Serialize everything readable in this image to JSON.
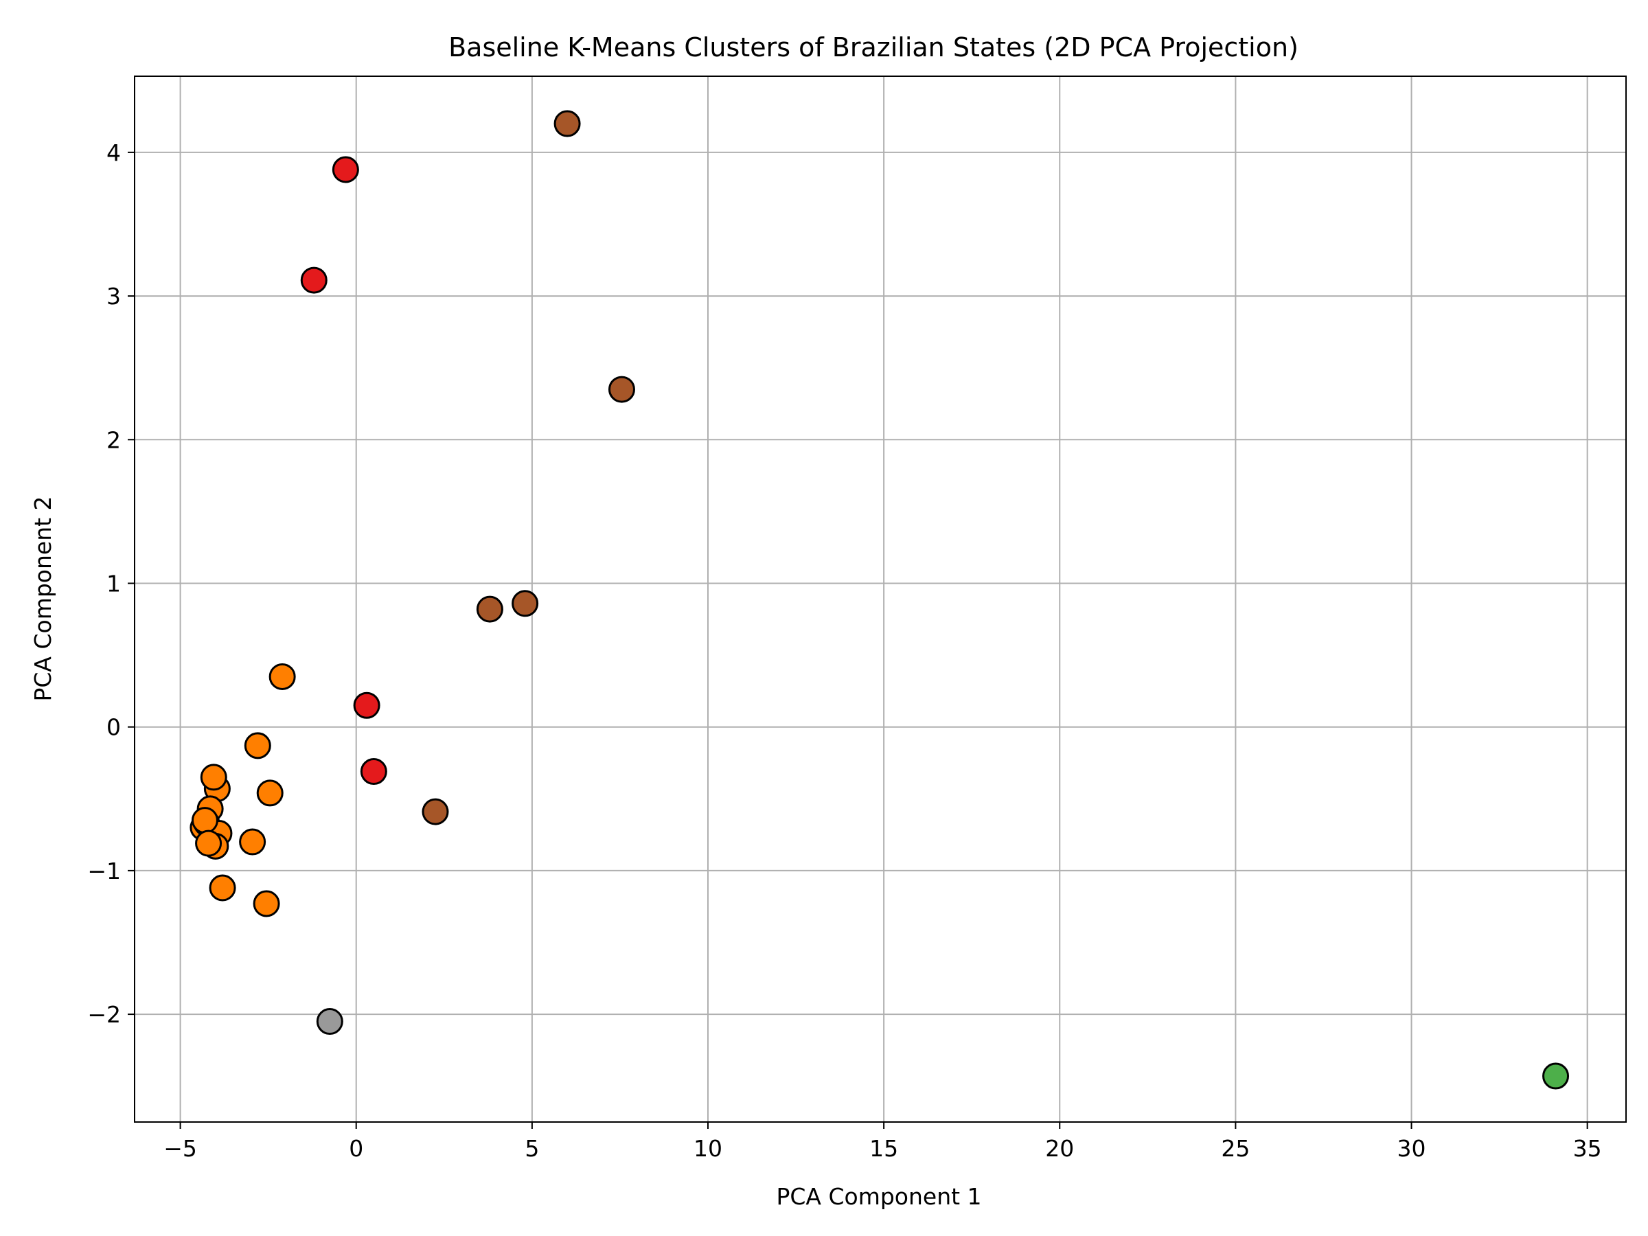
{
  "chart_data": {
    "type": "scatter",
    "title": "Baseline K-Means Clusters of Brazilian States (2D PCA Projection)",
    "xlabel": "PCA Component 1",
    "ylabel": "PCA Component 2",
    "xlim": [
      -6.3,
      36.1
    ],
    "ylim": [
      -2.75,
      4.53
    ],
    "xticks": [
      -5,
      0,
      5,
      10,
      15,
      20,
      25,
      30,
      35
    ],
    "yticks": [
      -2,
      -1,
      0,
      1,
      2,
      3,
      4
    ],
    "x_tick_labels": [
      "−5",
      "0",
      "5",
      "10",
      "15",
      "20",
      "25",
      "30",
      "35"
    ],
    "y_tick_labels": [
      "−2",
      "−1",
      "0",
      "1",
      "2",
      "3",
      "4"
    ],
    "grid": true,
    "legend": "none",
    "series": [
      {
        "color": "#ff7f00",
        "points": [
          [
            -2.1,
            0.35
          ],
          [
            -2.8,
            -0.13
          ],
          [
            -2.45,
            -0.46
          ],
          [
            -3.95,
            -0.43
          ],
          [
            -4.05,
            -0.35
          ],
          [
            -4.15,
            -0.57
          ],
          [
            -4.35,
            -0.7
          ],
          [
            -4.25,
            -0.67
          ],
          [
            -3.9,
            -0.74
          ],
          [
            -4.0,
            -0.83
          ],
          [
            -4.3,
            -0.65
          ],
          [
            -4.2,
            -0.81
          ],
          [
            -2.95,
            -0.8
          ],
          [
            -3.8,
            -1.12
          ],
          [
            -2.55,
            -1.23
          ]
        ]
      },
      {
        "color": "#e41a1c",
        "points": [
          [
            -0.3,
            3.88
          ],
          [
            -1.2,
            3.11
          ],
          [
            0.3,
            0.15
          ],
          [
            0.5,
            -0.31
          ]
        ]
      },
      {
        "color": "#a65628",
        "points": [
          [
            6.0,
            4.2
          ],
          [
            7.55,
            2.35
          ],
          [
            3.8,
            0.82
          ],
          [
            4.8,
            0.86
          ],
          [
            2.25,
            -0.59
          ]
        ]
      },
      {
        "color": "#999999",
        "points": [
          [
            -0.75,
            -2.05
          ]
        ]
      },
      {
        "color": "#4daf4a",
        "points": [
          [
            34.1,
            -2.43
          ]
        ]
      }
    ]
  }
}
